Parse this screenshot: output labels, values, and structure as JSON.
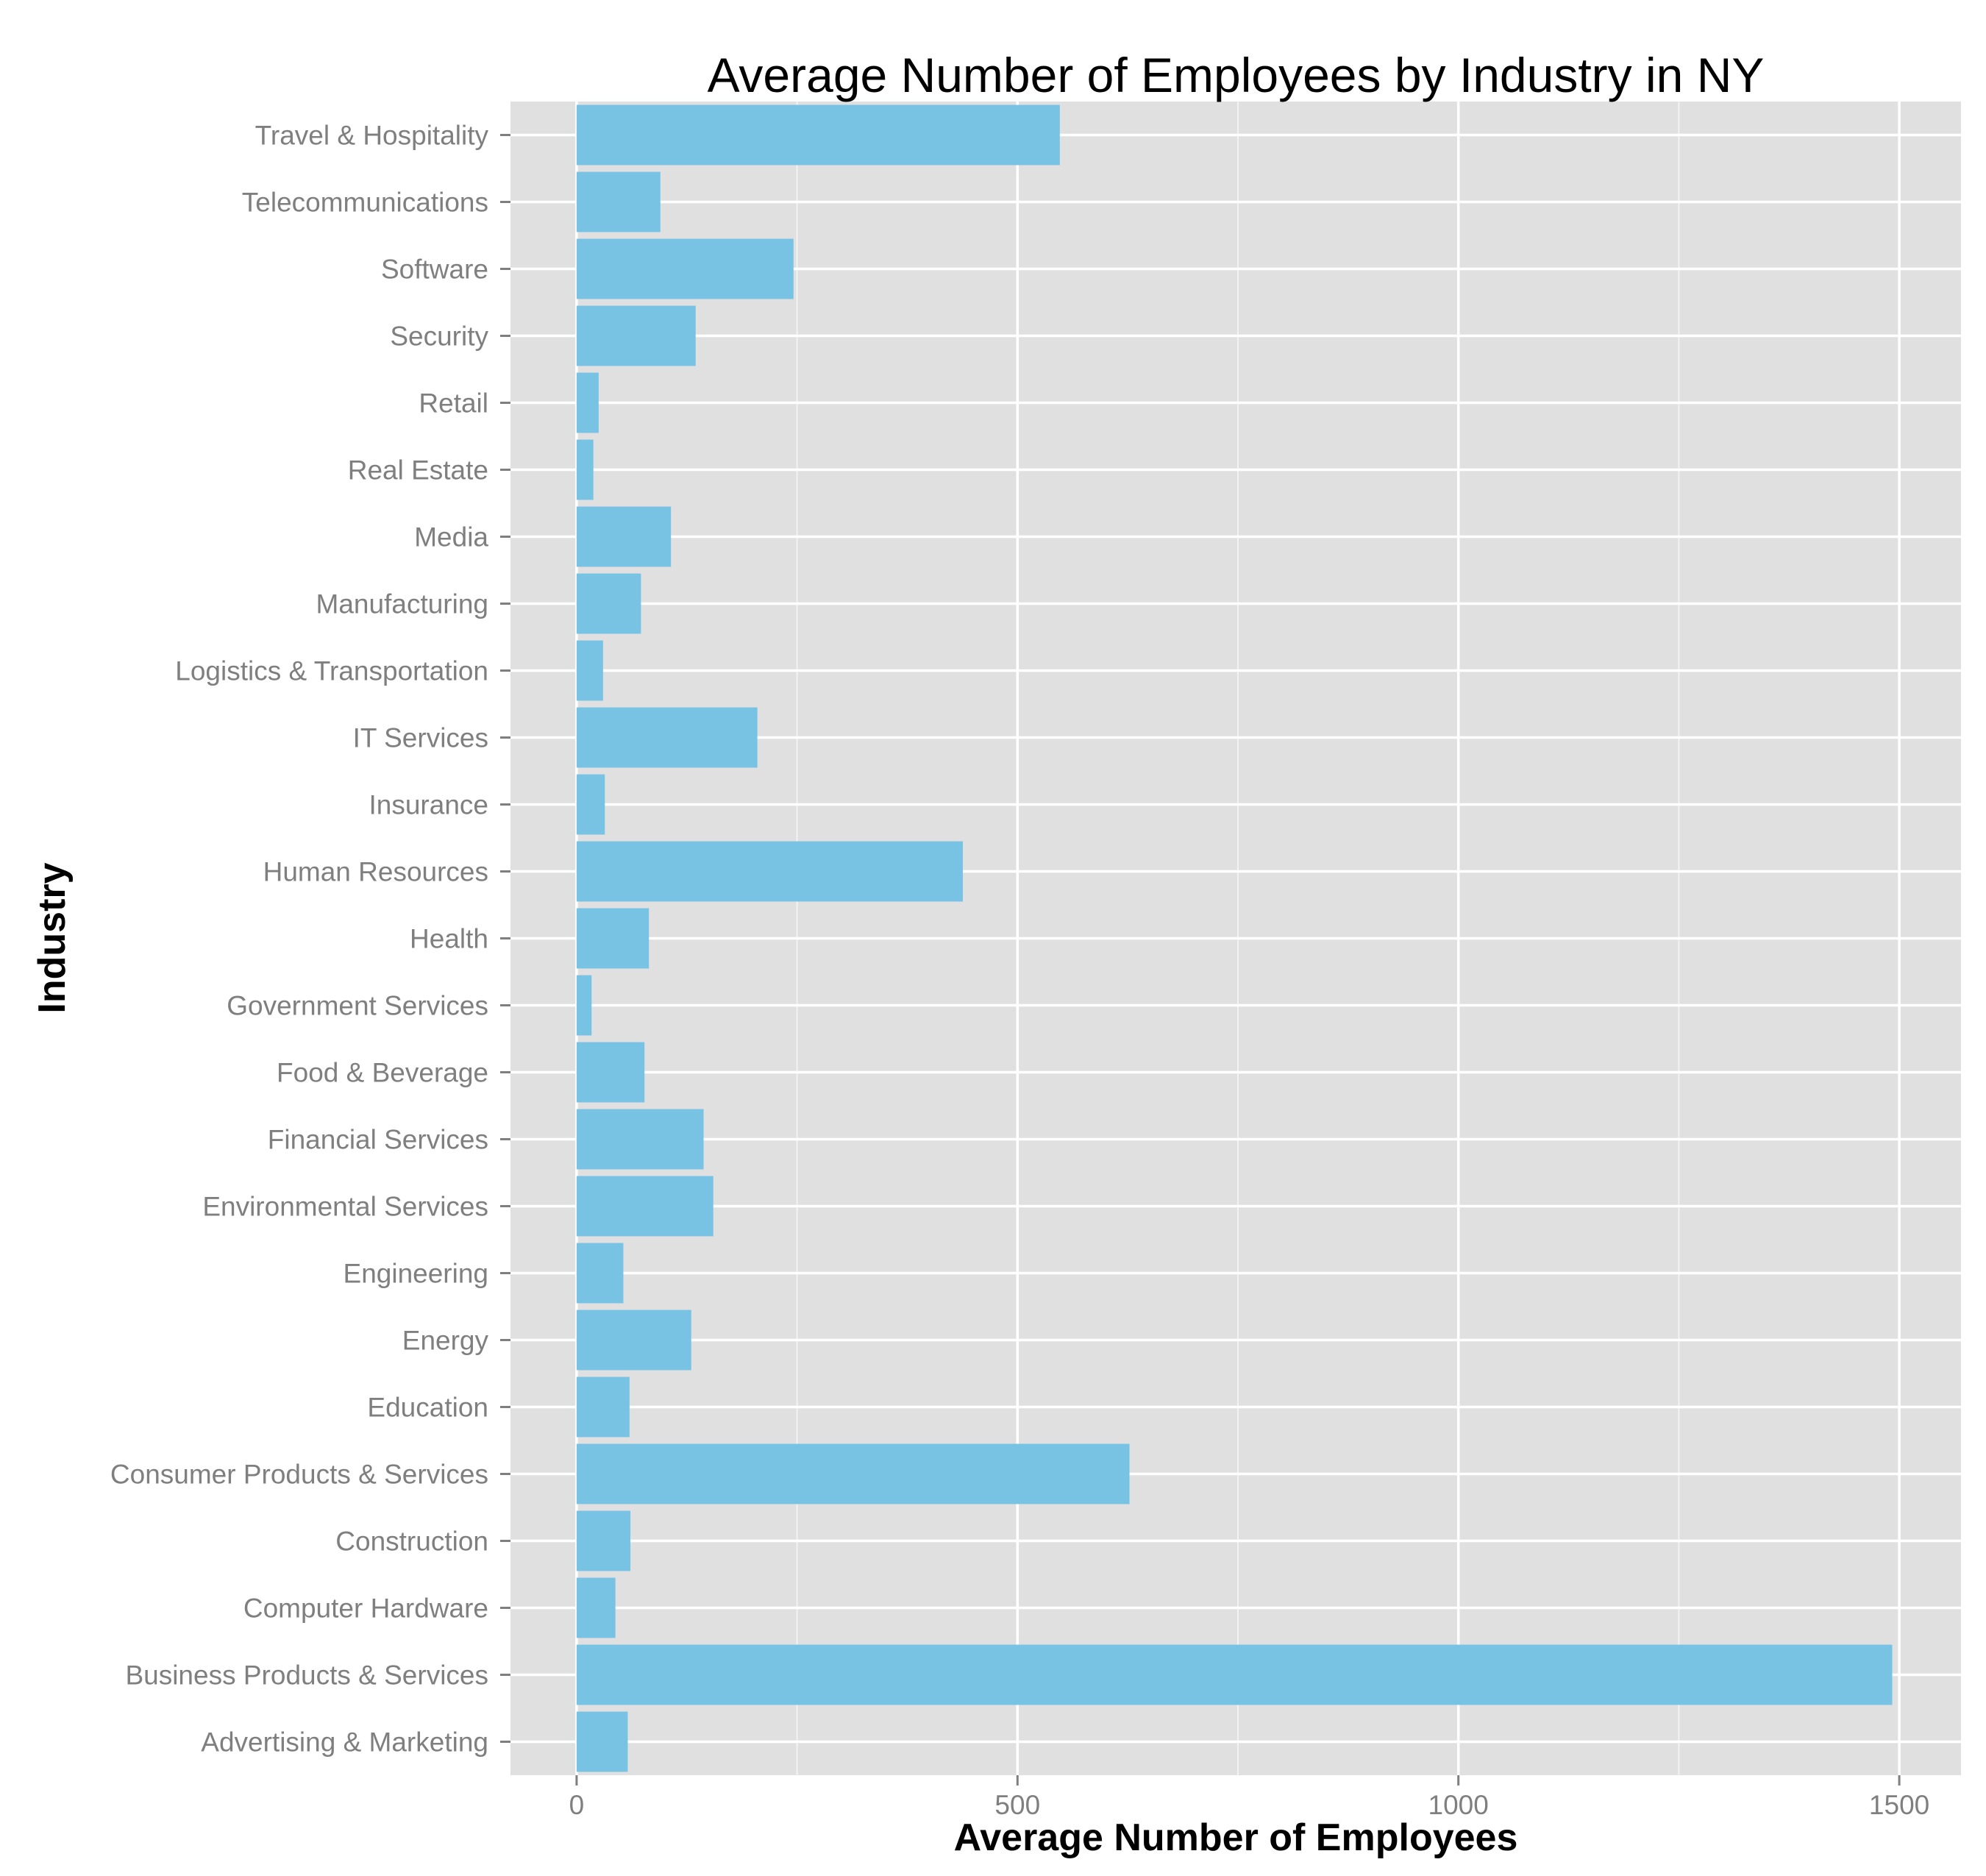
{
  "chart_data": {
    "type": "bar",
    "orientation": "horizontal",
    "title": "Average Number of Employees by Industry in NY",
    "xlabel": "Average Number of Employees",
    "ylabel": "Industry",
    "xlim": [
      -75,
      1570
    ],
    "x_ticks": [
      0,
      500,
      1000,
      1500
    ],
    "x_tick_labels": [
      "0",
      "500",
      "1000",
      "1500"
    ],
    "grid": true,
    "legend": "none",
    "colors": {
      "bar": "#78c2e4",
      "panel_background": "#e0e0e0",
      "grid_major": "#ffffff",
      "tick_label": "#7f7f7f",
      "title": "#000000"
    },
    "categories": [
      "Advertising & Marketing",
      "Business Products & Services",
      "Computer Hardware",
      "Construction",
      "Consumer Products & Services",
      "Education",
      "Energy",
      "Engineering",
      "Environmental Services",
      "Financial Services",
      "Food & Beverage",
      "Government Services",
      "Health",
      "Human Resources",
      "Insurance",
      "IT Services",
      "Logistics & Transportation",
      "Manufacturing",
      "Media",
      "Real Estate",
      "Retail",
      "Security",
      "Software",
      "Telecommunications",
      "Travel & Hospitality"
    ],
    "values": [
      58,
      1492,
      44,
      61,
      627,
      60,
      130,
      53,
      155,
      144,
      77,
      17,
      82,
      438,
      32,
      205,
      30,
      73,
      107,
      19,
      25,
      135,
      246,
      95,
      548
    ]
  }
}
